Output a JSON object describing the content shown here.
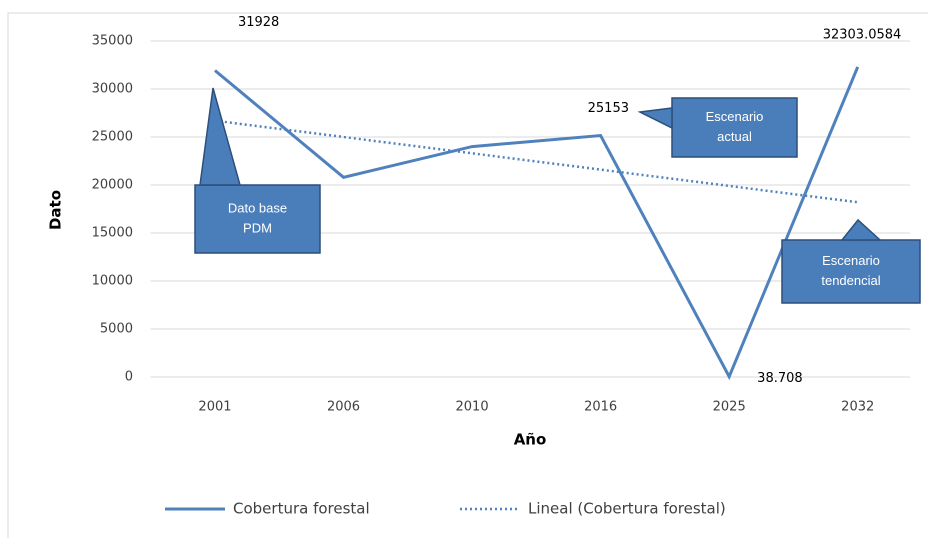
{
  "chart_data": {
    "type": "line",
    "categories": [
      "2001",
      "2006",
      "2010",
      "2016",
      "2025",
      "2032"
    ],
    "x_label": "Año",
    "y_label": "Dato",
    "series": [
      {
        "name": "Cobertura forestal",
        "color": "#4f81bd",
        "style": "solid",
        "values": [
          31928,
          20800,
          24000,
          25153,
          38.708,
          32303.0584
        ],
        "value_labels": [
          "31928",
          null,
          null,
          "25153",
          "38.708",
          "32303.0584"
        ]
      },
      {
        "name": "Lineal (Cobertura forestal)",
        "color": "#4f81bd",
        "style": "dotted",
        "values": [
          26700,
          25000,
          23300,
          21600,
          19900,
          18200
        ]
      }
    ],
    "ylim": [
      0,
      35000
    ],
    "yticks": [
      0,
      5000,
      10000,
      15000,
      20000,
      25000,
      30000,
      35000
    ],
    "grid": true,
    "legend": "bottom",
    "annotations": [
      {
        "lines": [
          "Dato base",
          "PDM"
        ]
      },
      {
        "lines": [
          "Escenario",
          "actual"
        ]
      },
      {
        "lines": [
          "Escenario",
          "tendencial"
        ]
      }
    ]
  }
}
